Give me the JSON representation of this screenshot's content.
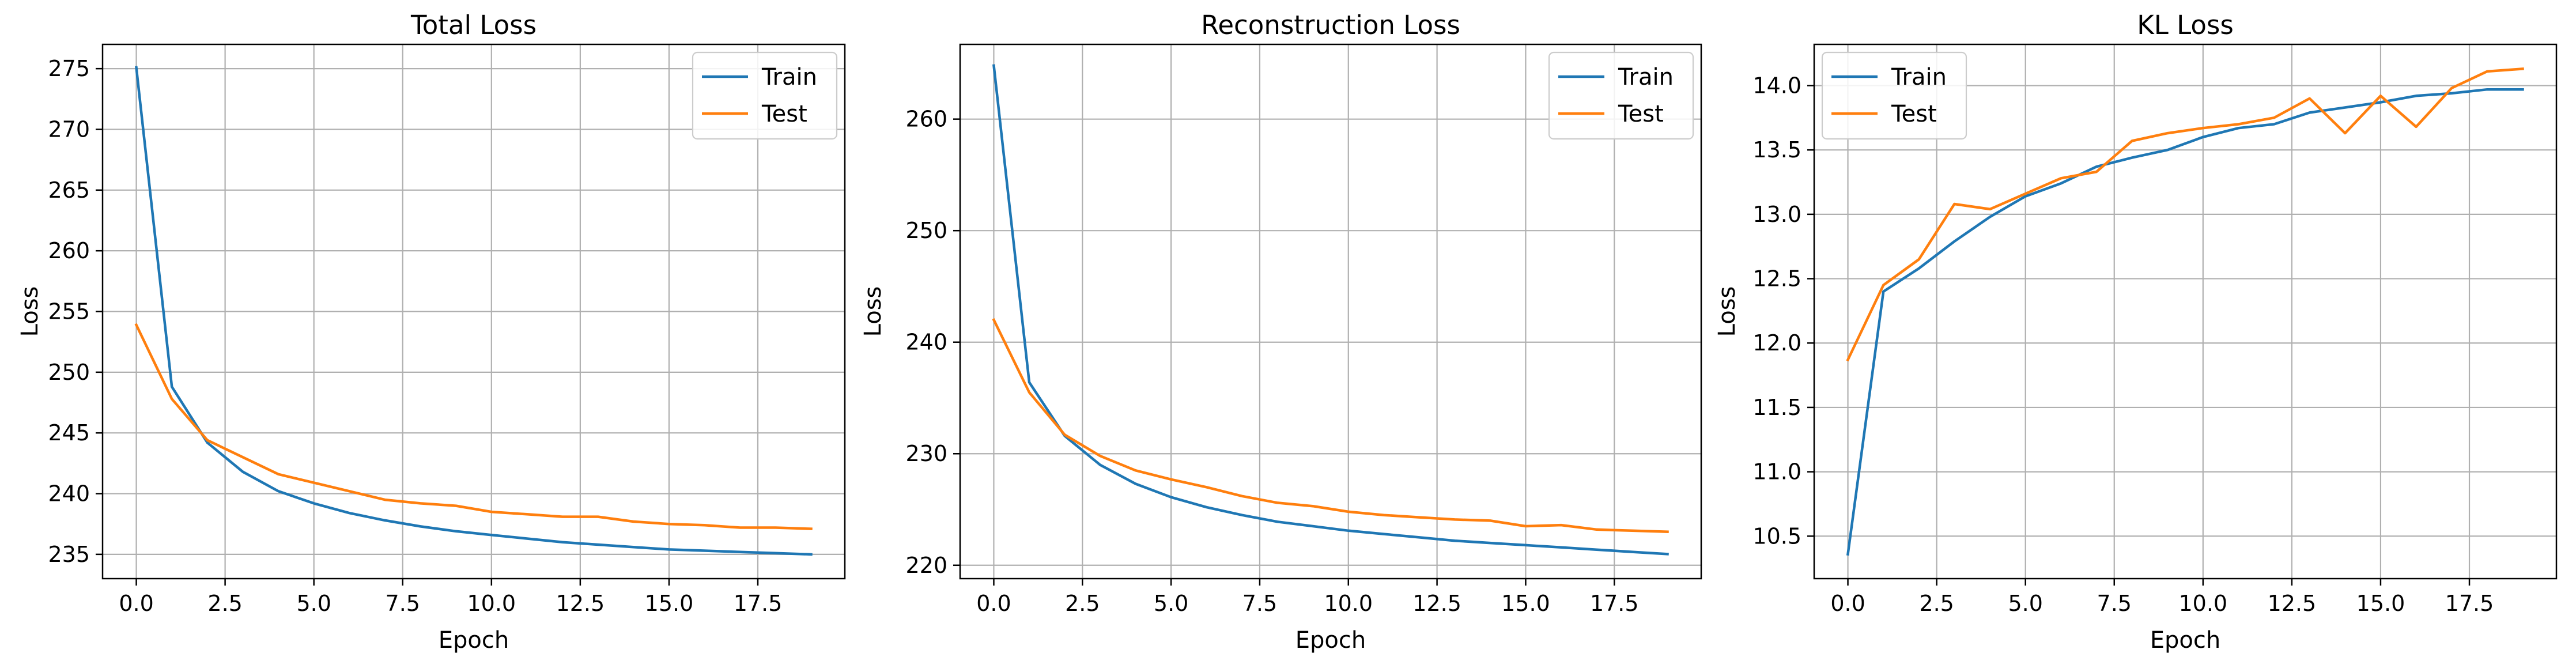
{
  "figure": {
    "series_colors": {
      "Train": "#1f77b4",
      "Test": "#ff7f0e"
    }
  },
  "chart_data": [
    {
      "type": "line",
      "title": "Total Loss",
      "xlabel": "Epoch",
      "ylabel": "Loss",
      "xlim": [
        -0.95,
        19.95
      ],
      "ylim": [
        233.0,
        277.0
      ],
      "xticks": [
        0.0,
        2.5,
        5.0,
        7.5,
        10.0,
        12.5,
        15.0,
        17.5
      ],
      "xtick_labels": [
        "0.0",
        "2.5",
        "5.0",
        "7.5",
        "10.0",
        "12.5",
        "15.0",
        "17.5"
      ],
      "yticks": [
        235,
        240,
        245,
        250,
        255,
        260,
        265,
        270,
        275
      ],
      "ytick_labels": [
        "235",
        "240",
        "245",
        "250",
        "255",
        "260",
        "265",
        "270",
        "275"
      ],
      "grid": true,
      "legend": "top-right",
      "x": [
        0,
        1,
        2,
        3,
        4,
        5,
        6,
        7,
        8,
        9,
        10,
        11,
        12,
        13,
        14,
        15,
        16,
        17,
        18,
        19
      ],
      "series": [
        {
          "name": "Train",
          "values": [
            275.1,
            248.8,
            244.2,
            241.8,
            240.2,
            239.2,
            238.4,
            237.8,
            237.3,
            236.9,
            236.6,
            236.3,
            236.0,
            235.8,
            235.6,
            235.4,
            235.3,
            235.2,
            235.1,
            235.0
          ]
        },
        {
          "name": "Test",
          "values": [
            253.9,
            247.8,
            244.4,
            243.0,
            241.6,
            240.9,
            240.2,
            239.5,
            239.2,
            239.0,
            238.5,
            238.3,
            238.1,
            238.1,
            237.7,
            237.5,
            237.4,
            237.2,
            237.2,
            237.1
          ]
        }
      ]
    },
    {
      "type": "line",
      "title": "Reconstruction Loss",
      "xlabel": "Epoch",
      "ylabel": "Loss",
      "xlim": [
        -0.95,
        19.95
      ],
      "ylim": [
        218.8,
        266.7
      ],
      "xticks": [
        0.0,
        2.5,
        5.0,
        7.5,
        10.0,
        12.5,
        15.0,
        17.5
      ],
      "xtick_labels": [
        "0.0",
        "2.5",
        "5.0",
        "7.5",
        "10.0",
        "12.5",
        "15.0",
        "17.5"
      ],
      "yticks": [
        220,
        230,
        240,
        250,
        260
      ],
      "ytick_labels": [
        "220",
        "230",
        "240",
        "250",
        "260"
      ],
      "grid": true,
      "legend": "top-right",
      "x": [
        0,
        1,
        2,
        3,
        4,
        5,
        6,
        7,
        8,
        9,
        10,
        11,
        12,
        13,
        14,
        15,
        16,
        17,
        18,
        19
      ],
      "series": [
        {
          "name": "Train",
          "values": [
            264.8,
            236.4,
            231.6,
            229.0,
            227.3,
            226.1,
            225.2,
            224.5,
            223.9,
            223.5,
            223.1,
            222.8,
            222.5,
            222.2,
            222.0,
            221.8,
            221.6,
            221.4,
            221.2,
            221.0
          ]
        },
        {
          "name": "Test",
          "values": [
            242.0,
            235.5,
            231.7,
            229.8,
            228.5,
            227.7,
            227.0,
            226.2,
            225.6,
            225.3,
            224.8,
            224.5,
            224.3,
            224.1,
            224.0,
            223.5,
            223.6,
            223.2,
            223.1,
            223.0
          ]
        }
      ]
    },
    {
      "type": "line",
      "title": "KL Loss",
      "xlabel": "Epoch",
      "ylabel": "Loss",
      "xlim": [
        -0.95,
        19.95
      ],
      "ylim": [
        10.17,
        14.32
      ],
      "xticks": [
        0.0,
        2.5,
        5.0,
        7.5,
        10.0,
        12.5,
        15.0,
        17.5
      ],
      "xtick_labels": [
        "0.0",
        "2.5",
        "5.0",
        "7.5",
        "10.0",
        "12.5",
        "15.0",
        "17.5"
      ],
      "yticks": [
        10.5,
        11.0,
        11.5,
        12.0,
        12.5,
        13.0,
        13.5,
        14.0
      ],
      "ytick_labels": [
        "10.5",
        "11.0",
        "11.5",
        "12.0",
        "12.5",
        "13.0",
        "13.5",
        "14.0"
      ],
      "grid": true,
      "legend": "top-left",
      "x": [
        0,
        1,
        2,
        3,
        4,
        5,
        6,
        7,
        8,
        9,
        10,
        11,
        12,
        13,
        14,
        15,
        16,
        17,
        18,
        19
      ],
      "series": [
        {
          "name": "Train",
          "values": [
            10.36,
            12.4,
            12.58,
            12.79,
            12.98,
            13.14,
            13.24,
            13.37,
            13.44,
            13.5,
            13.6,
            13.67,
            13.7,
            13.79,
            13.83,
            13.87,
            13.92,
            13.94,
            13.97,
            13.97
          ]
        },
        {
          "name": "Test",
          "values": [
            11.87,
            12.45,
            12.65,
            13.08,
            13.04,
            13.16,
            13.28,
            13.33,
            13.57,
            13.63,
            13.67,
            13.7,
            13.75,
            13.9,
            13.63,
            13.92,
            13.68,
            13.98,
            14.11,
            14.13
          ]
        }
      ]
    }
  ]
}
